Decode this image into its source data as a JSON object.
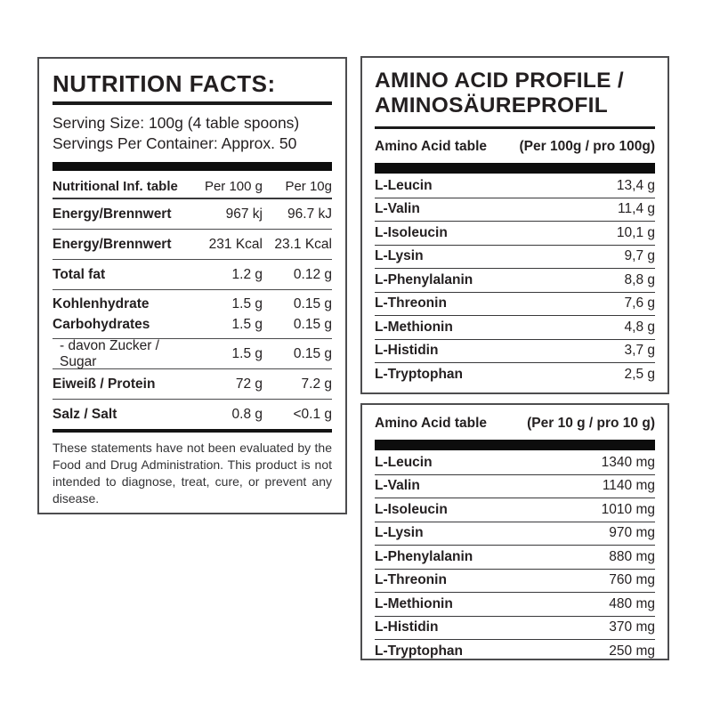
{
  "colors": {
    "background": "#ffffff",
    "text": "#231f20",
    "panel_border": "#4d4d4f",
    "thick_bar": "#0d0d0d"
  },
  "nutrition_facts": {
    "title": "NUTRITION FACTS:",
    "serving_size": "Serving Size: 100g (4 table spoons)",
    "servings_per_container": "Servings Per Container: Approx. 50",
    "table": {
      "headers": {
        "label": "Nutritional Inf. table",
        "col1": "Per 100 g",
        "col2": "Per 10g"
      },
      "rows": [
        {
          "label": "Energy/Brennwert",
          "per_100g": "967 kj",
          "per_10g": "96.7 kJ"
        },
        {
          "label": "Energy/Brennwert",
          "per_100g": "231 Kcal",
          "per_10g": "23.1 Kcal"
        },
        {
          "label": "Total fat",
          "per_100g": "1.2 g",
          "per_10g": "0.12 g"
        },
        {
          "label": "Kohlenhydrate",
          "per_100g": "1.5 g",
          "per_10g": "0.15 g"
        },
        {
          "label": "Carbohydrates",
          "per_100g": "1.5 g",
          "per_10g": "0.15 g"
        },
        {
          "label": "- davon Zucker / Sugar",
          "per_100g": "1.5 g",
          "per_10g": "0.15 g"
        },
        {
          "label": "Eiweiß / Protein",
          "per_100g": "72 g",
          "per_10g": "7.2 g"
        },
        {
          "label": "Salz / Salt",
          "per_100g": "0.8 g",
          "per_10g": "<0.1 g"
        }
      ]
    },
    "disclaimer": "These statements have not been evaluated by the Food and Drug Administration. This product is not intended to diagnose, treat, cure, or prevent any disease."
  },
  "amino_profile": {
    "title_line1": "AMINO ACID PROFILE /",
    "title_line2": "AMINOSÄUREPROFIL",
    "table_per_100g": {
      "header_label": "Amino Acid table",
      "header_unit": "(Per 100g / pro 100g)",
      "rows": [
        {
          "label": "L-Leucin",
          "value": "13,4 g"
        },
        {
          "label": "L-Valin",
          "value": "11,4 g"
        },
        {
          "label": "L-Isoleucin",
          "value": "10,1 g"
        },
        {
          "label": "L-Lysin",
          "value": "9,7 g"
        },
        {
          "label": "L-Phenylalanin",
          "value": "8,8 g"
        },
        {
          "label": "L-Threonin",
          "value": "7,6 g"
        },
        {
          "label": "L-Methionin",
          "value": "4,8 g"
        },
        {
          "label": "L-Histidin",
          "value": "3,7 g"
        },
        {
          "label": "L-Tryptophan",
          "value": "2,5 g"
        }
      ]
    },
    "table_per_10g": {
      "header_label": "Amino Acid table",
      "header_unit": "(Per 10 g / pro 10 g)",
      "rows": [
        {
          "label": "L-Leucin",
          "value": "1340 mg"
        },
        {
          "label": "L-Valin",
          "value": "1140 mg"
        },
        {
          "label": "L-Isoleucin",
          "value": "1010 mg"
        },
        {
          "label": "L-Lysin",
          "value": "970 mg"
        },
        {
          "label": "L-Phenylalanin",
          "value": "880 mg"
        },
        {
          "label": "L-Threonin",
          "value": "760 mg"
        },
        {
          "label": "L-Methionin",
          "value": "480 mg"
        },
        {
          "label": "L-Histidin",
          "value": "370 mg"
        },
        {
          "label": "L-Tryptophan",
          "value": "250 mg"
        }
      ]
    }
  }
}
